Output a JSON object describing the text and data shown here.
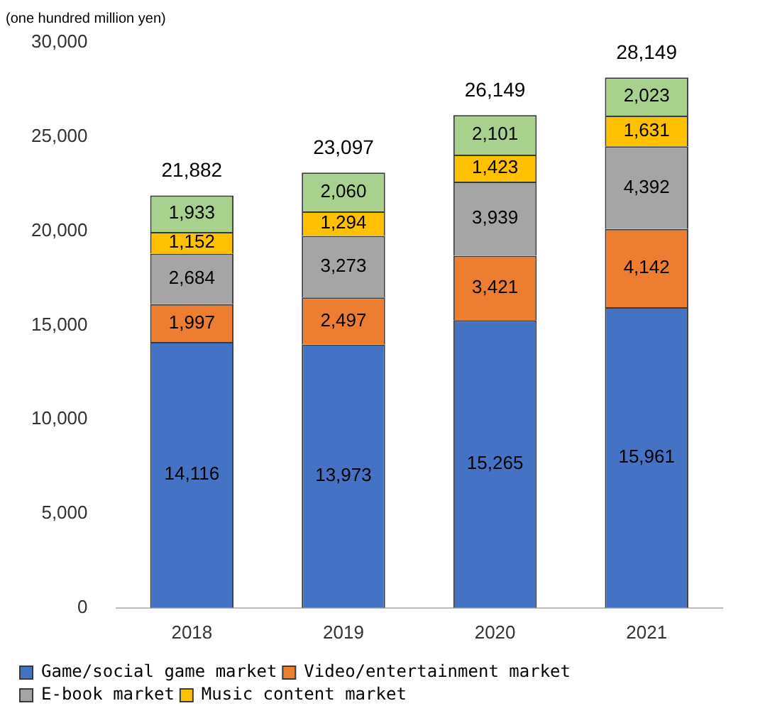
{
  "chart_data": {
    "type": "bar",
    "stacked": true,
    "ylabel": "(one hundred million yen)",
    "categories": [
      "2018",
      "2019",
      "2020",
      "2021"
    ],
    "series": [
      {
        "name": "Game/social game market",
        "color": "#4472c4",
        "values": [
          14116,
          13973,
          15265,
          15961
        ],
        "value_labels": [
          "14,116",
          "13,973",
          "15,265",
          "15,961"
        ]
      },
      {
        "name": "Video/entertainment market",
        "color": "#ed7d31",
        "values": [
          1997,
          2497,
          3421,
          4142
        ],
        "value_labels": [
          "1,997",
          "2,497",
          "3,421",
          "4,142"
        ]
      },
      {
        "name": "E-book market",
        "color": "#a5a5a5",
        "values": [
          2684,
          3273,
          3939,
          4392
        ],
        "value_labels": [
          "2,684",
          "3,273",
          "3,939",
          "4,392"
        ]
      },
      {
        "name": "Music content market",
        "color": "#ffc000",
        "values": [
          1152,
          1294,
          1423,
          1631
        ],
        "value_labels": [
          "1,152",
          "1,294",
          "1,423",
          "1,631"
        ]
      },
      {
        "color": "#a9d18e",
        "values": [
          1933,
          2060,
          2101,
          2023
        ],
        "value_labels": [
          "1,933",
          "2,060",
          "2,101",
          "2,023"
        ]
      }
    ],
    "totals": [
      "21,882",
      "23,097",
      "26,149",
      "28,149"
    ],
    "ylim": [
      0,
      30000
    ],
    "yticks": [
      {
        "value": 0,
        "label": "0"
      },
      {
        "value": 5000,
        "label": "5,000"
      },
      {
        "value": 10000,
        "label": "10,000"
      },
      {
        "value": 15000,
        "label": "15,000"
      },
      {
        "value": 20000,
        "label": "20,000"
      },
      {
        "value": 25000,
        "label": "25,000"
      },
      {
        "value": 30000,
        "label": "30,000"
      }
    ],
    "legend": "bottom"
  }
}
